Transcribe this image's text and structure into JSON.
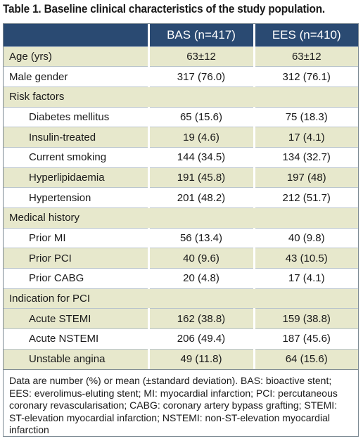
{
  "caption": "Table 1. Baseline clinical characteristics of the study population.",
  "headers": [
    "",
    "BAS (n=417)",
    "EES (n=410)"
  ],
  "rows": [
    {
      "type": "data",
      "label": "Age (yrs)",
      "bas": "63±12",
      "ees": "63±12",
      "indent": false,
      "hl": true
    },
    {
      "type": "data",
      "label": "Male gender",
      "bas": "317 (76.0)",
      "ees": "312 (76.1)",
      "indent": false,
      "hl": false
    },
    {
      "type": "section",
      "label": "Risk factors"
    },
    {
      "type": "data",
      "label": "Diabetes mellitus",
      "bas": "65 (15.6)",
      "ees": "75 (18.3)",
      "indent": true,
      "hl": false
    },
    {
      "type": "data",
      "label": "Insulin-treated",
      "bas": "19 (4.6)",
      "ees": "17 (4.1)",
      "indent": true,
      "hl": true
    },
    {
      "type": "data",
      "label": "Current smoking",
      "bas": "144 (34.5)",
      "ees": "134 (32.7)",
      "indent": true,
      "hl": false
    },
    {
      "type": "data",
      "label": "Hyperlipidaemia",
      "bas": "191 (45.8)",
      "ees": "197 (48)",
      "indent": true,
      "hl": true
    },
    {
      "type": "data",
      "label": "Hypertension",
      "bas": "201 (48.2)",
      "ees": "212 (51.7)",
      "indent": true,
      "hl": false
    },
    {
      "type": "section",
      "label": "Medical history"
    },
    {
      "type": "data",
      "label": "Prior MI",
      "bas": "56 (13.4)",
      "ees": "40 (9.8)",
      "indent": true,
      "hl": false
    },
    {
      "type": "data",
      "label": "Prior PCI",
      "bas": "40 (9.6)",
      "ees": "43 (10.5)",
      "indent": true,
      "hl": true
    },
    {
      "type": "data",
      "label": "Prior CABG",
      "bas": "20 (4.8)",
      "ees": "17 (4.1)",
      "indent": true,
      "hl": false
    },
    {
      "type": "section",
      "label": "Indication for PCI"
    },
    {
      "type": "data",
      "label": "Acute STEMI",
      "bas": "162 (38.8)",
      "ees": "159 (38.8)",
      "indent": true,
      "hl": true
    },
    {
      "type": "data",
      "label": "Acute NSTEMI",
      "bas": "206 (49.4)",
      "ees": "187 (45.6)",
      "indent": true,
      "hl": false
    },
    {
      "type": "data",
      "label": "Unstable angina",
      "bas": "49 (11.8)",
      "ees": "64 (15.6)",
      "indent": true,
      "hl": true
    }
  ],
  "footnote": "Data are number (%) or mean (±standard deviation). BAS: bioactive stent; EES: everolimus-eluting stent; MI: myocardial infarction; PCI: percutaneous coronary revascularisation; CABG: coronary artery bypass grafting; STEMI: ST-elevation myocardial infarction; NSTEMI: non-ST-elevation myocardial infarction",
  "colors": {
    "header_bg": "#2a4a72",
    "row_highlight": "#e7e8cc",
    "border": "#7d8a93"
  }
}
